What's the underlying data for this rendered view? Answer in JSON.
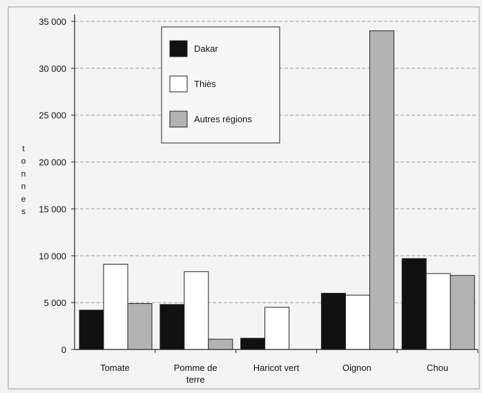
{
  "chart_data": {
    "type": "bar",
    "ylabel": "tonnes",
    "categories": [
      "Tomate",
      "Pomme de terre",
      "Haricot vert",
      "Oignon",
      "Chou"
    ],
    "category_lines": [
      [
        "Tomate"
      ],
      [
        "Pomme de",
        "terre"
      ],
      [
        "Haricot vert"
      ],
      [
        "Oignon"
      ],
      [
        "Chou"
      ]
    ],
    "series": [
      {
        "name": "Dakar",
        "color": "#111111",
        "values": [
          4200,
          4800,
          1200,
          6000,
          9700
        ]
      },
      {
        "name": "Thiès",
        "color": "#ffffff",
        "values": [
          9100,
          8300,
          4500,
          5800,
          8100
        ]
      },
      {
        "name": "Autres régions",
        "color": "#b3b3b3",
        "values": [
          4900,
          1100,
          0,
          34000,
          7900
        ]
      }
    ],
    "yticks": [
      0,
      5000,
      10000,
      15000,
      20000,
      25000,
      30000,
      35000
    ],
    "ytick_labels": [
      "0",
      "5 000",
      "10 000",
      "15 000",
      "20 000",
      "25 000",
      "30 000",
      "35 000"
    ],
    "ylim": [
      0,
      35000
    ],
    "grid": "horizontal dashed",
    "legend_position": "top-left"
  }
}
